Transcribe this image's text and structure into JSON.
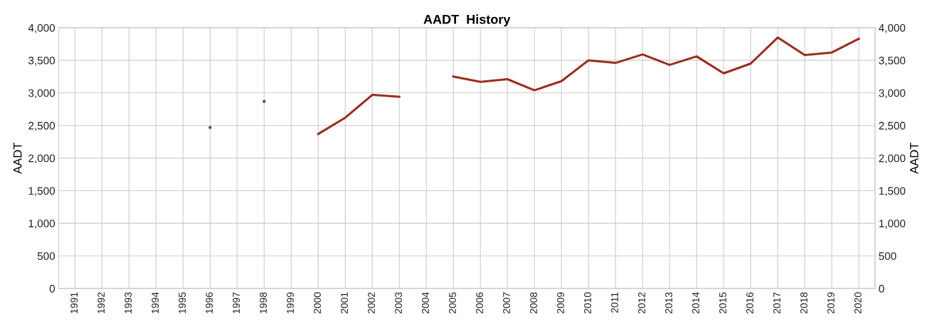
{
  "chart_data": {
    "type": "line",
    "title": "AADT  History",
    "ylabel": "AADT",
    "y2label": "AADT",
    "categories": [
      "1991",
      "1992",
      "1993",
      "1994",
      "1995",
      "1996",
      "1997",
      "1998",
      "1999",
      "2000",
      "2001",
      "2002",
      "2003",
      "2004",
      "2005",
      "2006",
      "2007",
      "2008",
      "2009",
      "2010",
      "2011",
      "2012",
      "2013",
      "2014",
      "2015",
      "2016",
      "2017",
      "2018",
      "2019",
      "2020"
    ],
    "series": [
      {
        "color": "#9b2d1f",
        "values": [
          null,
          null,
          null,
          null,
          null,
          null,
          null,
          null,
          null,
          2370,
          2620,
          2970,
          2940,
          null,
          3250,
          3170,
          3210,
          3040,
          3180,
          3500,
          3460,
          3590,
          3430,
          3560,
          3300,
          3450,
          3850,
          3580,
          3620,
          3830
        ]
      },
      {
        "type": "scatter",
        "color": "#555555",
        "values": [
          null,
          null,
          null,
          null,
          null,
          2470,
          null,
          2870,
          null,
          null,
          null,
          null,
          null,
          null,
          null,
          null,
          null,
          null,
          null,
          null,
          null,
          null,
          null,
          null,
          null,
          null,
          null,
          null,
          null,
          null
        ]
      }
    ],
    "ylim": [
      0,
      4000
    ],
    "yticks": [
      0,
      {
        "value": 500,
        "label": "500"
      },
      {
        "value": 1000,
        "label": "1,000"
      },
      {
        "value": 1500,
        "label": "1,500"
      },
      {
        "value": 2000,
        "label": "2,000"
      },
      {
        "value": 2500,
        "label": "2,500"
      },
      {
        "value": 3000,
        "label": "3,000"
      },
      {
        "value": 3500,
        "label": "3,500"
      },
      {
        "value": 4000,
        "label": "4,000"
      }
    ],
    "y2lim": [
      0,
      4000
    ],
    "y2ticks": [
      0,
      {
        "value": 500,
        "label": "500"
      },
      {
        "value": 1000,
        "label": "1,000"
      },
      {
        "value": 1500,
        "label": "1,500"
      },
      {
        "value": 2000,
        "label": "2,000"
      },
      {
        "value": 2500,
        "label": "2,500"
      },
      {
        "value": 3000,
        "label": "3,000"
      },
      {
        "value": 3500,
        "label": "3,500"
      },
      {
        "value": 4000,
        "label": "4,000"
      }
    ],
    "grid": true,
    "marker": "none",
    "line_style": "solid"
  }
}
